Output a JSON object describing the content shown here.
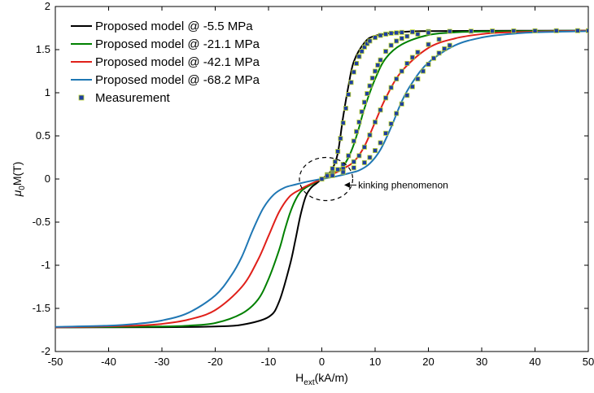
{
  "chart_data": {
    "type": "line",
    "title": "",
    "xlabel": {
      "main": "H",
      "sub": "ext",
      "rest": "(kA/m)"
    },
    "ylabel": {
      "main": "μ",
      "sub": "0",
      "rest": "M(T)"
    },
    "xlim": [
      -50,
      50
    ],
    "ylim": [
      -2,
      2
    ],
    "xticks": [
      -50,
      -40,
      -30,
      -20,
      -10,
      0,
      10,
      20,
      30,
      40,
      50
    ],
    "yticks": [
      -2,
      -1.5,
      -1,
      -0.5,
      0,
      0.5,
      1,
      1.5,
      2
    ],
    "xtick_labels": [
      "-50",
      "-40",
      "-30",
      "-20",
      "-10",
      "0",
      "10",
      "20",
      "30",
      "40",
      "50"
    ],
    "ytick_labels": [
      "-2",
      "-1.5",
      "-1",
      "-0.5",
      "0",
      "0.5",
      "1",
      "1.5",
      "2"
    ],
    "grid": false,
    "legend_position": "top-left",
    "series": [
      {
        "name": "Proposed model @ -5.5 MPa",
        "color": "#000000",
        "x": [
          -50,
          -30,
          -20,
          -15,
          -10,
          -8,
          -6,
          -5,
          -4,
          -3,
          -2,
          -1,
          0,
          1,
          2,
          3,
          4,
          5,
          6,
          8,
          10,
          15,
          20,
          30,
          50
        ],
        "y": [
          -1.72,
          -1.718,
          -1.71,
          -1.69,
          -1.6,
          -1.42,
          -1.0,
          -0.72,
          -0.42,
          -0.2,
          -0.1,
          -0.05,
          0.0,
          0.05,
          0.12,
          0.3,
          0.72,
          1.08,
          1.36,
          1.58,
          1.66,
          1.705,
          1.715,
          1.718,
          1.72
        ]
      },
      {
        "name": "Proposed model @ -21.1 MPa",
        "color": "#008000",
        "x": [
          -50,
          -30,
          -25,
          -20,
          -15,
          -12,
          -10,
          -8,
          -7,
          -6,
          -5,
          -4,
          -3,
          -2,
          -1,
          0,
          1,
          2,
          3,
          4,
          5,
          6,
          7,
          8,
          10,
          12,
          15,
          20,
          25,
          30,
          50
        ],
        "y": [
          -1.72,
          -1.71,
          -1.7,
          -1.67,
          -1.56,
          -1.4,
          -1.16,
          -0.82,
          -0.6,
          -0.4,
          -0.25,
          -0.15,
          -0.1,
          -0.065,
          -0.03,
          0.0,
          0.03,
          0.065,
          0.1,
          0.15,
          0.25,
          0.4,
          0.6,
          0.82,
          1.16,
          1.4,
          1.56,
          1.67,
          1.7,
          1.71,
          1.72
        ]
      },
      {
        "name": "Proposed model @ -42.1 MPa",
        "color": "#e0201a",
        "x": [
          -50,
          -35,
          -30,
          -25,
          -20,
          -15,
          -12,
          -10,
          -8,
          -6,
          -4,
          -3,
          -2,
          -1,
          0,
          1,
          2,
          3,
          4,
          6,
          8,
          10,
          12,
          15,
          20,
          25,
          30,
          35,
          50
        ],
        "y": [
          -1.72,
          -1.7,
          -1.68,
          -1.63,
          -1.52,
          -1.25,
          -0.94,
          -0.66,
          -0.38,
          -0.2,
          -0.12,
          -0.085,
          -0.055,
          -0.027,
          0.0,
          0.027,
          0.055,
          0.085,
          0.12,
          0.2,
          0.38,
          0.66,
          0.94,
          1.25,
          1.52,
          1.63,
          1.68,
          1.7,
          1.72
        ]
      },
      {
        "name": "Proposed model @ -68.2 MPa",
        "color": "#1f77b4",
        "x": [
          -50,
          -40,
          -35,
          -30,
          -25,
          -20,
          -17,
          -15,
          -13,
          -11,
          -9,
          -7,
          -5,
          -3,
          -1,
          0,
          1,
          3,
          5,
          7,
          9,
          11,
          13,
          15,
          17,
          20,
          25,
          30,
          35,
          40,
          50
        ],
        "y": [
          -1.715,
          -1.7,
          -1.68,
          -1.64,
          -1.55,
          -1.35,
          -1.12,
          -0.9,
          -0.6,
          -0.34,
          -0.18,
          -0.1,
          -0.065,
          -0.035,
          -0.01,
          0.0,
          0.01,
          0.035,
          0.065,
          0.1,
          0.18,
          0.34,
          0.6,
          0.9,
          1.12,
          1.35,
          1.55,
          1.64,
          1.68,
          1.7,
          1.715
        ]
      }
    ],
    "measurement": {
      "name": "Measurement",
      "color": "#1f3fa0",
      "edge_color": "#c0d830",
      "sets": [
        {
          "x": [
            0,
            1,
            2,
            2.5,
            3,
            3.5,
            4,
            4.5,
            5,
            5.5,
            6,
            6.5,
            7,
            7.5,
            8,
            8.5,
            9,
            10,
            11,
            12,
            13,
            14,
            15,
            17,
            20,
            24,
            28,
            32,
            36,
            40,
            44,
            48,
            50
          ],
          "y": [
            0.0,
            0.05,
            0.12,
            0.2,
            0.32,
            0.47,
            0.65,
            0.82,
            0.98,
            1.12,
            1.24,
            1.34,
            1.42,
            1.48,
            1.53,
            1.57,
            1.6,
            1.64,
            1.665,
            1.68,
            1.69,
            1.695,
            1.7,
            1.705,
            1.71,
            1.712,
            1.714,
            1.716,
            1.717,
            1.718,
            1.719,
            1.72,
            1.72
          ]
        },
        {
          "x": [
            0,
            1,
            2,
            3,
            4,
            5,
            6,
            6.5,
            7,
            7.5,
            8,
            8.5,
            9,
            9.5,
            10,
            10.5,
            11,
            12,
            13,
            14,
            15,
            16,
            18,
            20
          ],
          "y": [
            0.0,
            0.035,
            0.07,
            0.11,
            0.17,
            0.27,
            0.44,
            0.55,
            0.66,
            0.78,
            0.89,
            0.99,
            1.08,
            1.17,
            1.25,
            1.32,
            1.38,
            1.48,
            1.55,
            1.6,
            1.63,
            1.655,
            1.68,
            1.695
          ]
        },
        {
          "x": [
            0,
            2,
            4,
            6,
            7,
            8,
            9,
            10,
            11,
            12,
            13,
            14,
            15,
            16,
            17,
            18,
            20,
            22
          ],
          "y": [
            0.0,
            0.055,
            0.12,
            0.2,
            0.27,
            0.37,
            0.51,
            0.66,
            0.8,
            0.94,
            1.06,
            1.16,
            1.25,
            1.34,
            1.41,
            1.47,
            1.56,
            1.62
          ]
        },
        {
          "x": [
            0,
            2,
            4,
            6,
            8,
            9,
            10,
            11,
            12,
            13,
            14,
            15,
            16,
            17,
            18,
            19,
            20,
            21,
            22,
            23,
            24
          ],
          "y": [
            0.0,
            0.04,
            0.08,
            0.13,
            0.19,
            0.25,
            0.33,
            0.42,
            0.53,
            0.64,
            0.76,
            0.87,
            0.97,
            1.07,
            1.16,
            1.25,
            1.33,
            1.4,
            1.46,
            1.51,
            1.55
          ]
        }
      ]
    },
    "annotation": {
      "text": "kinking phenomenon",
      "circle_center": [
        0.8,
        0.0
      ],
      "circle_radius_x": 5,
      "circle_radius_y": 0.25,
      "arrow_from": [
        6.5,
        -0.07
      ],
      "arrow_to": [
        4.2,
        -0.07
      ]
    }
  }
}
